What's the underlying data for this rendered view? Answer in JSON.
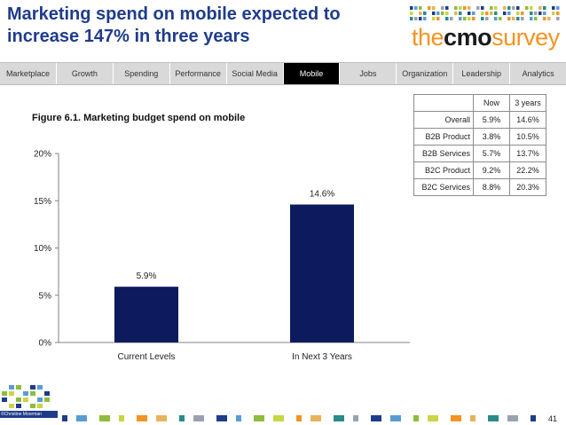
{
  "title": {
    "line1": "Marketing spend on mobile expected to",
    "line2": "increase 147% in three years"
  },
  "logo": {
    "the": "the",
    "cmo": "cmo",
    "survey": "survey"
  },
  "nav": {
    "tabs": [
      "Marketplace",
      "Growth",
      "Spending",
      "Performance",
      "Social Media",
      "Mobile",
      "Jobs",
      "Organization",
      "Leadership",
      "Analytics"
    ],
    "active": "Mobile"
  },
  "figure": {
    "label": "Figure 6.1",
    "text": ".  Marketing budget spend on mobile"
  },
  "chart_data": {
    "type": "bar",
    "title": "Figure 6.1.  Marketing budget spend on mobile",
    "categories": [
      "Current Levels",
      "In Next 3 Years"
    ],
    "values": [
      5.9,
      14.6
    ],
    "value_labels": [
      "5.9%",
      "14.6%"
    ],
    "ylim": [
      0,
      20
    ],
    "yticks": [
      0,
      5,
      10,
      15,
      20
    ],
    "ytick_labels": [
      "0%",
      "5%",
      "10%",
      "15%",
      "20%"
    ],
    "xlabel": "",
    "ylabel": "",
    "bar_color": "#0d1b5e",
    "grid": false
  },
  "table": {
    "headers": [
      "",
      "Now",
      "3 years"
    ],
    "rows": [
      [
        "Overall",
        "5.9%",
        "14.6%"
      ],
      [
        "B2B Product",
        "3.8%",
        "10.5%"
      ],
      [
        "B2B Services",
        "5.7%",
        "13.7%"
      ],
      [
        "B2C Product",
        "9.2%",
        "22.2%"
      ],
      [
        "B2C Services",
        "8.8%",
        "20.3%"
      ]
    ]
  },
  "footer": {
    "author": "©Christine Moorman",
    "page": "41"
  },
  "colors": {
    "title": "#1f3c8b",
    "accent_orange": "#f29423",
    "bar": "#0d1b5e",
    "nav_bg": "#d9d9d9",
    "nav_active": "#000000",
    "footer_palette": [
      "#1f3c8b",
      "#5b9bd5",
      "#8fbc3c",
      "#c9d545",
      "#f29423",
      "#e7b35a",
      "#2a8a8a",
      "#9aa3ad"
    ]
  }
}
